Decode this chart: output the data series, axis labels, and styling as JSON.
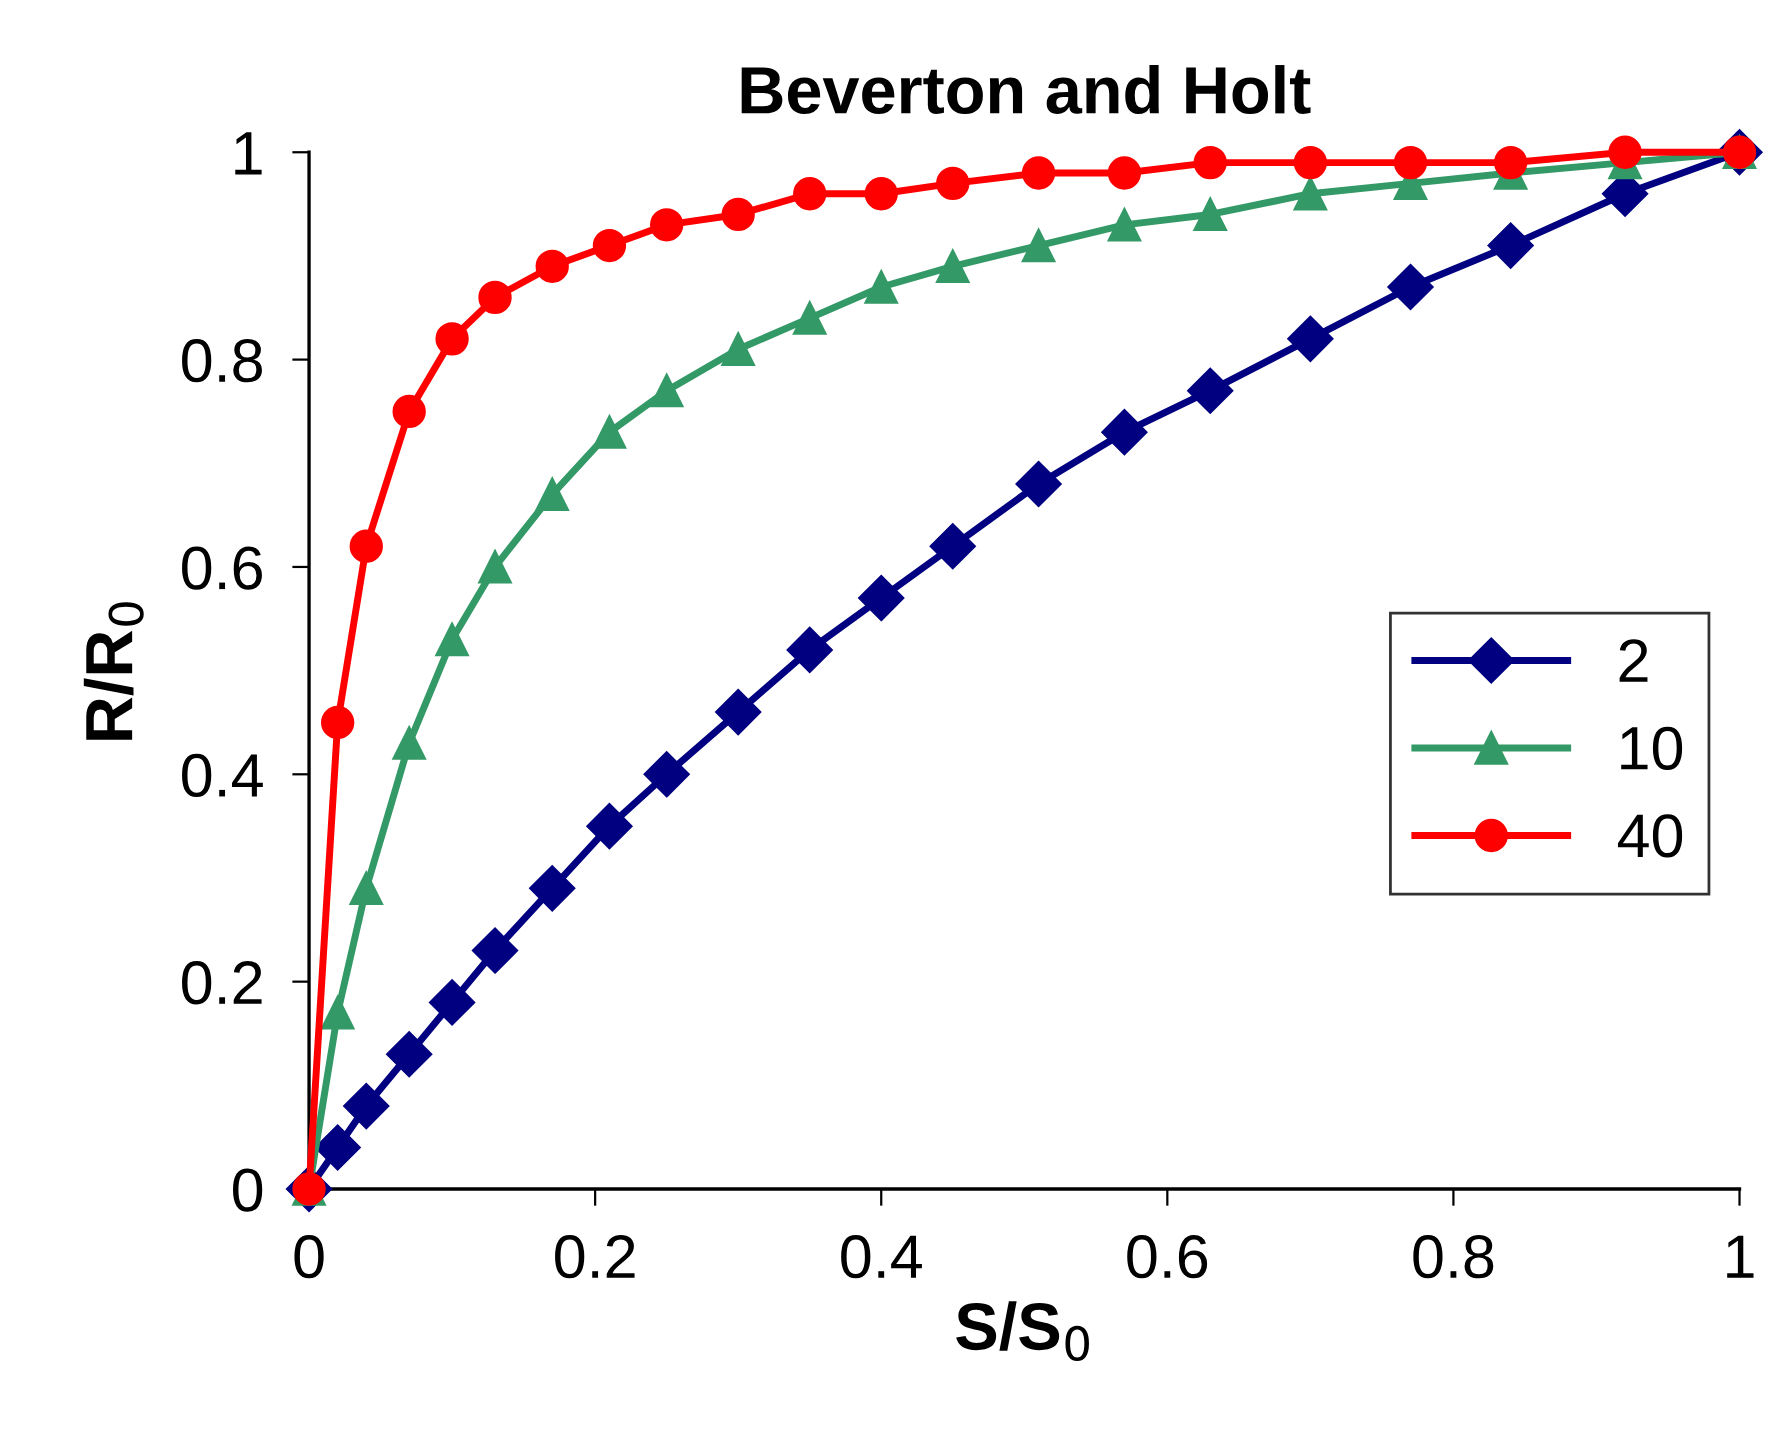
{
  "chart_data": {
    "type": "line",
    "title": "Beverton and Holt",
    "xlabel": "S/S$_{0}$",
    "ylabel": "R/R$_{0}$",
    "x": [
      0,
      0.02,
      0.04,
      0.07,
      0.1,
      0.13,
      0.17,
      0.21,
      0.25,
      0.3,
      0.35,
      0.4,
      0.45,
      0.51,
      0.57,
      0.63,
      0.7,
      0.77,
      0.84,
      0.92,
      1
    ],
    "series": [
      {
        "name": "2",
        "color": "#000080",
        "marker": "diamond",
        "values": [
          0,
          0.04,
          0.08,
          0.13,
          0.18,
          0.23,
          0.29,
          0.35,
          0.4,
          0.46,
          0.52,
          0.57,
          0.62,
          0.68,
          0.73,
          0.77,
          0.82,
          0.87,
          0.91,
          0.96,
          1
        ]
      },
      {
        "name": "10",
        "color": "#339966",
        "marker": "triangle",
        "values": [
          0,
          0.17,
          0.29,
          0.43,
          0.53,
          0.6,
          0.67,
          0.73,
          0.77,
          0.81,
          0.84,
          0.87,
          0.89,
          0.91,
          0.93,
          0.94,
          0.96,
          0.97,
          0.98,
          0.99,
          1
        ]
      },
      {
        "name": "40",
        "color": "#ff0000",
        "marker": "circle",
        "values": [
          0,
          0.45,
          0.62,
          0.75,
          0.82,
          0.86,
          0.89,
          0.91,
          0.93,
          0.94,
          0.96,
          0.96,
          0.97,
          0.98,
          0.98,
          0.99,
          0.99,
          0.99,
          0.99,
          1,
          1
        ]
      }
    ],
    "xlim": [
      0,
      1
    ],
    "ylim": [
      0,
      1
    ],
    "xticks": [
      0,
      0.2,
      0.4,
      0.6,
      0.8,
      1
    ],
    "yticks": [
      0,
      0.2,
      0.4,
      0.6,
      0.8,
      1
    ],
    "grid": false,
    "legend": "right",
    "line_style": "solid"
  }
}
